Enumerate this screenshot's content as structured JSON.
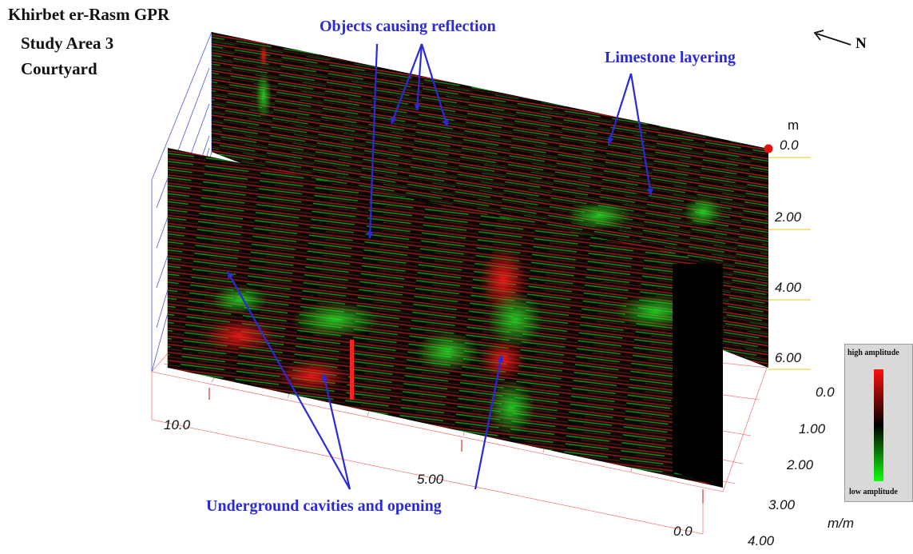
{
  "title_lines": [
    "Khirbet er-Rasm GPR",
    "Study Area 3",
    "Courtyard"
  ],
  "north_label": "N",
  "annotations": {
    "objects": "Objects causing reflection",
    "limestone": "Limestone layering",
    "cavities": "Underground cavities and opening"
  },
  "depth_axis": {
    "unit": "m",
    "ticks": [
      "0.0",
      "2.00",
      "4.00",
      "6.00"
    ]
  },
  "x_axis": {
    "ticks": [
      "10.0",
      "5.00",
      "0.0"
    ]
  },
  "y_axis": {
    "unit": "m/m",
    "ticks": [
      "0.0",
      "1.00",
      "2.00",
      "3.00",
      "4.00"
    ]
  },
  "legend": {
    "high": "high amplitude",
    "low": "low amplitude",
    "colors": [
      "#ff1010",
      "#000000",
      "#10ff10"
    ]
  },
  "colors": {
    "annotation": "#2a2adb",
    "grid": "#f08080",
    "radar_bg": "#050805"
  }
}
